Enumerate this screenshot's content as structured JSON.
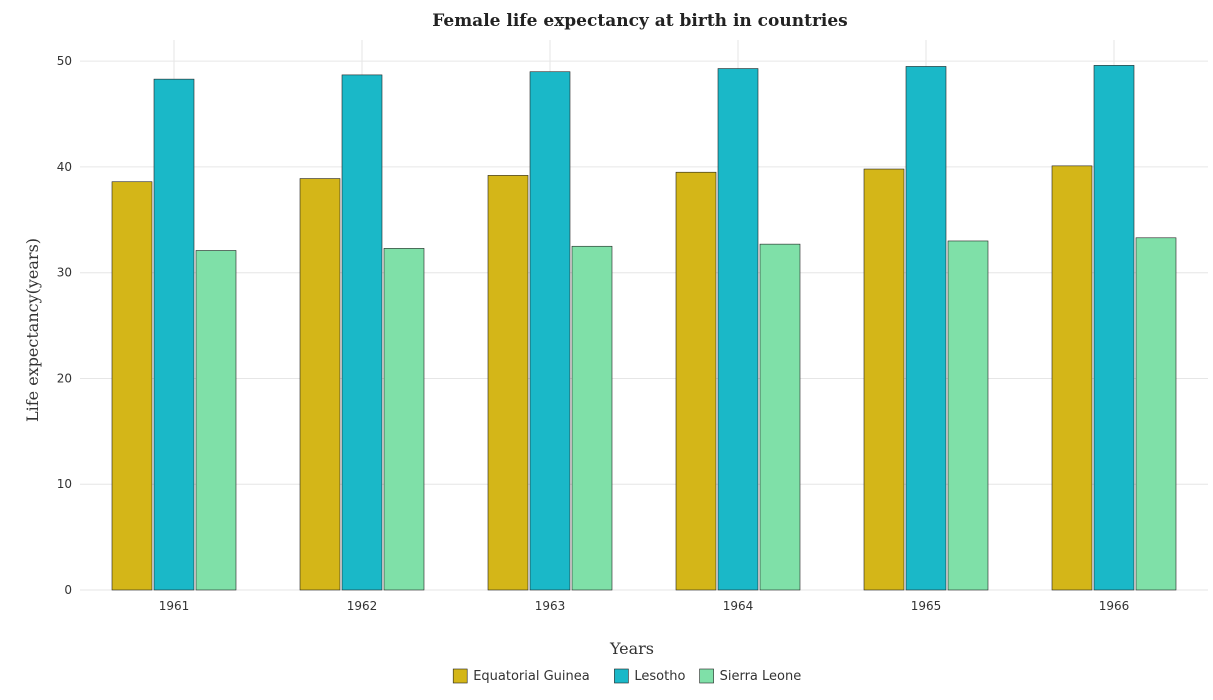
{
  "chart_data": {
    "type": "bar",
    "title": "Female life expectancy at birth in countries",
    "xlabel": "Years",
    "ylabel": "Life expectancy(years)",
    "categories": [
      "1961",
      "1962",
      "1963",
      "1964",
      "1965",
      "1966"
    ],
    "series": [
      {
        "name": "Equatorial Guinea",
        "color": "#d4b618",
        "values": [
          38.6,
          38.9,
          39.2,
          39.5,
          39.8,
          40.1
        ]
      },
      {
        "name": "Lesotho",
        "color": "#1ab8c8",
        "values": [
          48.3,
          48.7,
          49.0,
          49.3,
          49.5,
          49.6
        ]
      },
      {
        "name": "Sierra Leone",
        "color": "#7fe0a8",
        "values": [
          32.1,
          32.3,
          32.5,
          32.7,
          33.0,
          33.3
        ]
      }
    ],
    "ylim": [
      0,
      52
    ],
    "yticks": [
      0,
      10,
      20,
      30,
      40,
      50
    ],
    "grid": true,
    "legend_position": "bottom-center"
  }
}
